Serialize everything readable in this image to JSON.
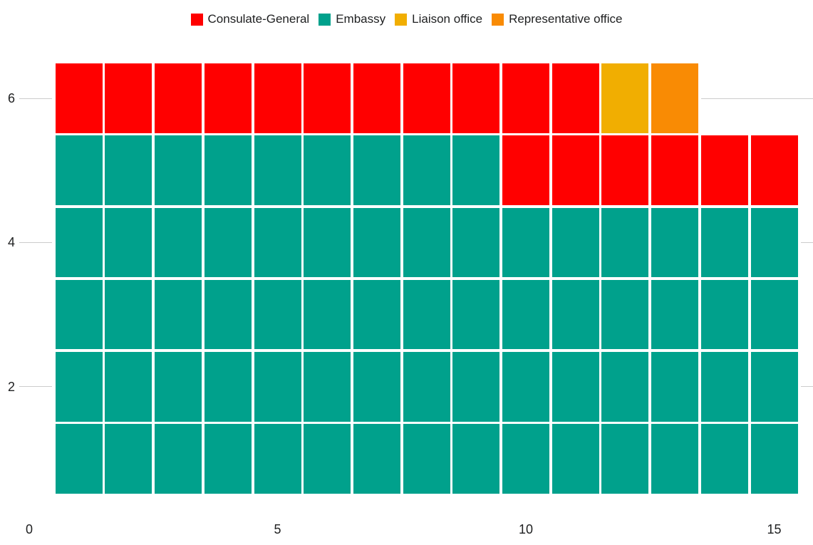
{
  "chart_data": {
    "type": "heatmap",
    "subtype": "waffle-unit-chart",
    "title": "",
    "legend_position": "top-center",
    "grid": "partial-horizontal-gridlines",
    "x_axis": {
      "ticks": [
        0,
        5,
        10,
        15
      ],
      "range": [
        0,
        16
      ]
    },
    "y_axis": {
      "ticks": [
        6,
        4,
        2
      ],
      "range": [
        0,
        6.5
      ]
    },
    "categories": [
      {
        "label": "Consulate-General",
        "color": "#ff0000"
      },
      {
        "label": "Embassy",
        "color": "#00a18c"
      },
      {
        "label": "Liaison office",
        "color": "#f1ae01"
      },
      {
        "label": "Representative office",
        "color": "#f98b04"
      }
    ],
    "rows": [
      {
        "y": 6,
        "segments": [
          [
            "Consulate-General",
            11
          ],
          [
            "Liaison office",
            1
          ],
          [
            "Representative office",
            1
          ]
        ]
      },
      {
        "y": 5,
        "segments": [
          [
            "Embassy",
            9
          ],
          [
            "Consulate-General",
            6
          ]
        ]
      },
      {
        "y": 4,
        "segments": [
          [
            "Embassy",
            15
          ]
        ]
      },
      {
        "y": 3,
        "segments": [
          [
            "Embassy",
            15
          ]
        ]
      },
      {
        "y": 2,
        "segments": [
          [
            "Embassy",
            15
          ]
        ]
      },
      {
        "y": 1,
        "segments": [
          [
            "Embassy",
            15
          ]
        ]
      }
    ],
    "totals": {
      "Consulate-General": 17,
      "Embassy": 69,
      "Liaison office": 1,
      "Representative office": 1
    }
  },
  "colors": {
    "background": "#ffffff",
    "gridline": "#cccccc",
    "axis_text": "#202122"
  }
}
